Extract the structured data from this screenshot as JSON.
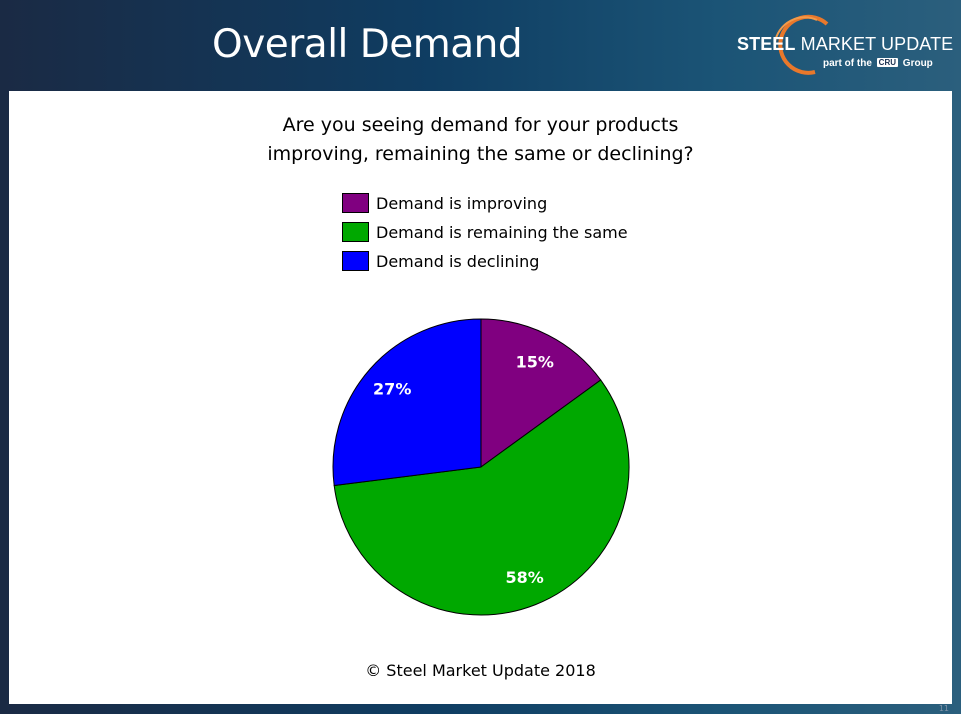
{
  "header": {
    "title": "Overall Demand"
  },
  "logo": {
    "brand_bold": "STEEL",
    "brand_rest": "MARKET UPDATE",
    "sub_prefix": "part of the",
    "sub_badge": "CRU",
    "sub_suffix": "Group"
  },
  "footer": {
    "copyright": "© Steel Market Update 2018"
  },
  "page_number": "11",
  "chart_data": {
    "type": "pie",
    "title": "Are you seeing demand for your products improving, remaining the same or declining?",
    "title_line1": "Are you seeing demand for your products",
    "title_line2": "improving, remaining the same or declining?",
    "legend_position": "top",
    "slices": [
      {
        "label": "Demand is improving",
        "value": 15,
        "display": "15%",
        "color": "#800080"
      },
      {
        "label": "Demand is remaining the same",
        "value": 58,
        "display": "58%",
        "color": "#00a800"
      },
      {
        "label": "Demand is declining",
        "value": 27,
        "display": "27%",
        "color": "#0000ff"
      }
    ]
  }
}
